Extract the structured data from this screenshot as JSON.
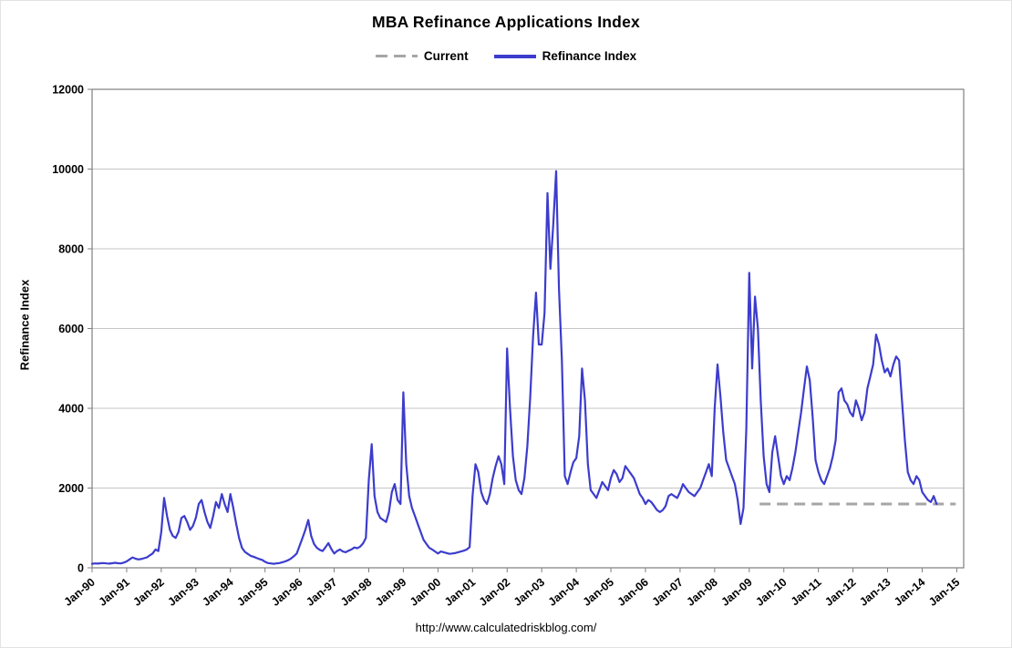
{
  "chart": {
    "title": "MBA Refinance Applications Index",
    "ylabel": "Refinance Index",
    "source": "http://www.calculatedriskblog.com/",
    "legend": [
      {
        "label": "Current"
      },
      {
        "label": "Refinance Index"
      }
    ]
  },
  "chart_data": {
    "type": "line",
    "title": "MBA Refinance Applications Index",
    "xlabel": "",
    "ylabel": "Refinance Index",
    "xlim": [
      1990,
      2015.2
    ],
    "ylim": [
      0,
      12000
    ],
    "ytick_step": 2000,
    "grid": "horizontal",
    "legend_position": "top",
    "x_tickvals": [
      1990,
      1991,
      1992,
      1993,
      1994,
      1995,
      1996,
      1997,
      1998,
      1999,
      2000,
      2001,
      2002,
      2003,
      2004,
      2005,
      2006,
      2007,
      2008,
      2009,
      2010,
      2011,
      2012,
      2013,
      2014,
      2015
    ],
    "x_ticklabels": [
      "Jan-90",
      "Jan-91",
      "Jan-92",
      "Jan-93",
      "Jan-94",
      "Jan-95",
      "Jan-96",
      "Jan-97",
      "Jan-98",
      "Jan-99",
      "Jan-00",
      "Jan-01",
      "Jan-02",
      "Jan-03",
      "Jan-04",
      "Jan-05",
      "Jan-06",
      "Jan-07",
      "Jan-08",
      "Jan-09",
      "Jan-10",
      "Jan-11",
      "Jan-12",
      "Jan-13",
      "Jan-14",
      "Jan-15"
    ],
    "series": [
      {
        "name": "Current",
        "type": "hline",
        "value": 1600,
        "x_start": 2009.3,
        "x_end": 2014.97,
        "color": "#a6a6a6",
        "dash": "12 7",
        "width": 3
      },
      {
        "name": "Refinance Index",
        "type": "line",
        "frequency": "monthly",
        "x_start": 1990.0,
        "color": "#3c3ccd",
        "width": 2.2,
        "values": [
          100,
          110,
          105,
          115,
          120,
          110,
          105,
          115,
          125,
          115,
          110,
          130,
          160,
          210,
          260,
          230,
          210,
          220,
          240,
          260,
          310,
          360,
          460,
          420,
          900,
          1750,
          1300,
          950,
          800,
          750,
          900,
          1250,
          1300,
          1150,
          950,
          1050,
          1250,
          1600,
          1700,
          1400,
          1150,
          1000,
          1300,
          1650,
          1500,
          1850,
          1600,
          1400,
          1850,
          1500,
          1100,
          750,
          500,
          400,
          350,
          300,
          280,
          250,
          220,
          200,
          150,
          120,
          110,
          100,
          110,
          120,
          140,
          160,
          190,
          230,
          290,
          360,
          550,
          750,
          950,
          1200,
          800,
          600,
          500,
          450,
          420,
          520,
          620,
          470,
          360,
          420,
          460,
          410,
          390,
          430,
          460,
          510,
          490,
          530,
          610,
          750,
          2200,
          3100,
          1800,
          1400,
          1250,
          1200,
          1150,
          1400,
          1900,
          2100,
          1700,
          1600,
          4400,
          2600,
          1800,
          1500,
          1300,
          1100,
          900,
          700,
          600,
          500,
          460,
          410,
          360,
          410,
          390,
          370,
          350,
          360,
          370,
          390,
          410,
          430,
          460,
          520,
          1800,
          2600,
          2400,
          1900,
          1700,
          1600,
          1850,
          2250,
          2550,
          2800,
          2600,
          2100,
          5500,
          4000,
          2800,
          2200,
          1950,
          1850,
          2250,
          3050,
          4250,
          5800,
          6900,
          5600,
          5600,
          6400,
          9400,
          7500,
          8600,
          9950,
          7000,
          5200,
          2300,
          2100,
          2400,
          2650,
          2750,
          3300,
          5000,
          4200,
          2600,
          1950,
          1850,
          1750,
          1950,
          2150,
          2050,
          1950,
          2250,
          2450,
          2350,
          2150,
          2250,
          2550,
          2450,
          2350,
          2250,
          2050,
          1850,
          1750,
          1600,
          1700,
          1650,
          1550,
          1450,
          1400,
          1450,
          1550,
          1800,
          1850,
          1800,
          1750,
          1900,
          2100,
          2000,
          1900,
          1850,
          1800,
          1900,
          2000,
          2200,
          2400,
          2600,
          2300,
          4000,
          5100,
          4300,
          3400,
          2700,
          2500,
          2300,
          2100,
          1700,
          1100,
          1500,
          3500,
          7400,
          5000,
          6800,
          6000,
          4200,
          2800,
          2100,
          1900,
          2900,
          3300,
          2800,
          2300,
          2100,
          2300,
          2200,
          2500,
          2900,
          3400,
          3900,
          4500,
          5050,
          4700,
          3800,
          2700,
          2400,
          2200,
          2100,
          2300,
          2500,
          2800,
          3200,
          4400,
          4500,
          4200,
          4100,
          3900,
          3800,
          4200,
          4000,
          3700,
          3900,
          4500,
          4800,
          5100,
          5850,
          5600,
          5200,
          4900,
          5000,
          4800,
          5100,
          5300,
          5200,
          4200,
          3200,
          2400,
          2200,
          2100,
          2300,
          2200,
          1900,
          1800,
          1700,
          1650,
          1800,
          1600
        ]
      }
    ]
  }
}
